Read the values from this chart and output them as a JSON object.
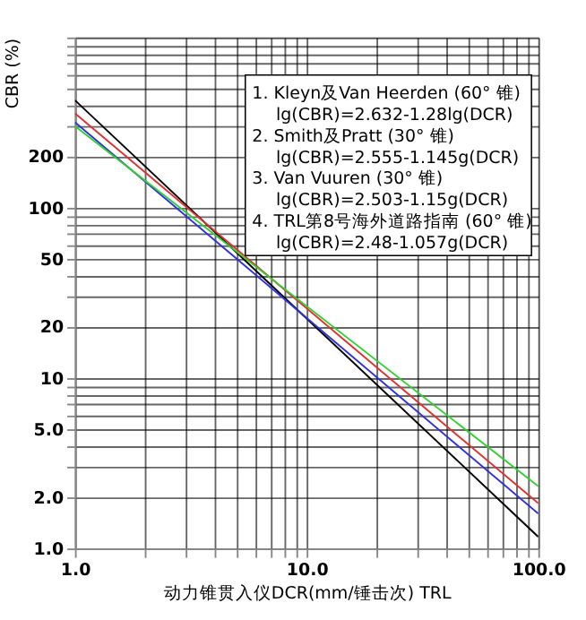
{
  "chart_data": {
    "type": "line",
    "xlabel": "动力锥贯入仪DCR(mm/锤击次)      TRL",
    "ylabel": "CBR (%)",
    "log": "xy",
    "grid": true,
    "legend": false,
    "marker": "none",
    "line_style": "solid",
    "xlim": [
      1,
      100
    ],
    "ylim": [
      1,
      1000
    ],
    "xticks": [
      {
        "value": 1,
        "label": "1.0"
      },
      {
        "value": 2,
        "label": null
      },
      {
        "value": 3,
        "label": null
      },
      {
        "value": 4,
        "label": null
      },
      {
        "value": 5,
        "label": null
      },
      {
        "value": 6,
        "label": null
      },
      {
        "value": 7,
        "label": null
      },
      {
        "value": 8,
        "label": null
      },
      {
        "value": 9,
        "label": null
      },
      {
        "value": 10,
        "label": "10.0"
      },
      {
        "value": 20,
        "label": null
      },
      {
        "value": 30,
        "label": null
      },
      {
        "value": 40,
        "label": null
      },
      {
        "value": 50,
        "label": null
      },
      {
        "value": 60,
        "label": null
      },
      {
        "value": 70,
        "label": null
      },
      {
        "value": 80,
        "label": null
      },
      {
        "value": 90,
        "label": null
      },
      {
        "value": 100,
        "label": "100.0"
      }
    ],
    "yticks": [
      {
        "value": 1,
        "label": "1.0"
      },
      {
        "value": 2,
        "label": "2.0"
      },
      {
        "value": 3,
        "label": null
      },
      {
        "value": 4,
        "label": null
      },
      {
        "value": 5,
        "label": "5.0"
      },
      {
        "value": 6,
        "label": null
      },
      {
        "value": 7,
        "label": null
      },
      {
        "value": 8,
        "label": null
      },
      {
        "value": 9,
        "label": null
      },
      10,
      20,
      {
        "value": 30,
        "label": null
      },
      {
        "value": 40,
        "label": null
      },
      50,
      {
        "value": 60,
        "label": null
      },
      {
        "value": 70,
        "label": null
      },
      {
        "value": 80,
        "label": null
      },
      {
        "value": 90,
        "label": null
      },
      100,
      200,
      {
        "value": 300,
        "label": null
      },
      {
        "value": 400,
        "label": null
      },
      {
        "value": 500,
        "label": null
      },
      {
        "value": 600,
        "label": null
      },
      {
        "value": 700,
        "label": null
      },
      {
        "value": 800,
        "label": null
      },
      {
        "value": 900,
        "label": null
      },
      {
        "value": 1000,
        "label": null
      }
    ],
    "x": [
      1,
      100
    ],
    "series": [
      {
        "color": "#000000",
        "values": [
          428,
          1.17
        ]
      },
      {
        "color": "#e03030",
        "values": [
          359,
          1.84
        ]
      },
      {
        "color": "#3030e0",
        "values": [
          318,
          1.6
        ]
      },
      {
        "color": "#30d030",
        "values": [
          302,
          2.32
        ]
      }
    ],
    "annotations": [
      "1. Kleyn及Van Heerden (60° 锥)",
      "lg(CBR)=2.632-1.28lg(DCR)",
      "2. Smith及Pratt (30° 锥)",
      "lg(CBR)=2.555-1.145g(DCR)",
      "3. Van Vuuren (30° 锥)",
      "lg(CBR)=2.503-1.15g(DCR)",
      "4. TRL第8号海外道路指南 (60° 锥)",
      "lg(CBR)=2.48-1.057g(DCR)"
    ]
  }
}
